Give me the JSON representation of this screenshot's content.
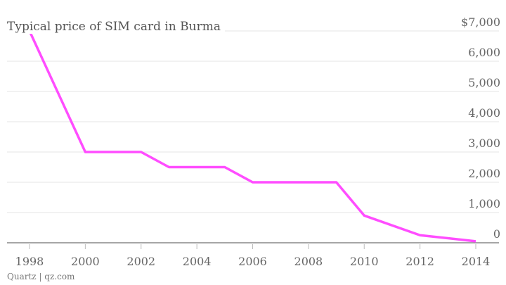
{
  "chart_data": {
    "type": "line",
    "title": "Typical price of SIM card in Burma",
    "xlabel": "",
    "ylabel": "",
    "x": [
      1998,
      2000,
      2002,
      2003,
      2005,
      2006,
      2009,
      2010,
      2012,
      2014
    ],
    "series": [
      {
        "values": [
          7000,
          3000,
          3000,
          2500,
          2500,
          2000,
          2000,
          900,
          250,
          50
        ],
        "color": "#ff4dff"
      }
    ],
    "xlim": [
      1998,
      2014
    ],
    "ylim": [
      0,
      7000
    ],
    "x_ticks": [
      "1998",
      "2000",
      "2002",
      "2004",
      "2006",
      "2008",
      "2010",
      "2012",
      "2014"
    ],
    "y_ticks": [
      "0",
      "1,000",
      "2,000",
      "3,000",
      "4,000",
      "5,000",
      "6,000",
      "$7,000"
    ],
    "grid": true,
    "legend": "none"
  },
  "credit": "Quartz | qz.com"
}
